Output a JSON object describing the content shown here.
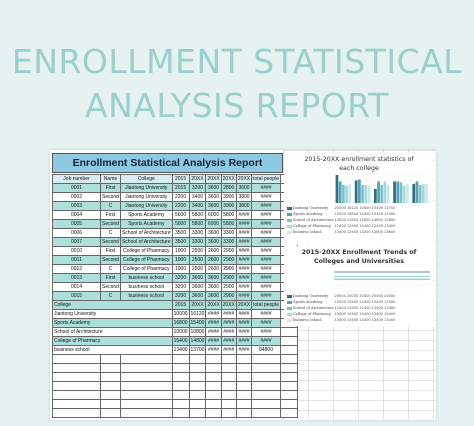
{
  "banner": {
    "line1": "ENROLLMENT STATISTICAL",
    "line2": "ANALYSIS REPORT"
  },
  "sheet": {
    "title": "Enrollment Statistical Analysis Report",
    "headers": [
      "Job number",
      "Name",
      "College",
      "2015",
      "20XX",
      "20XX",
      "20XX",
      "20XX",
      "total people"
    ],
    "rows": [
      [
        "0001",
        "First",
        "Jiaotong University",
        "2015",
        "3200",
        "3600",
        "2800",
        "3600",
        "####"
      ],
      [
        "0002",
        "Second",
        "Jiaotong University",
        "2200",
        "3400",
        "3600",
        "3900",
        "3800",
        "####"
      ],
      [
        "0003",
        "C",
        "Jiaotong University",
        "2200",
        "3400",
        "3600",
        "3900",
        "3800",
        "####"
      ],
      [
        "0004",
        "First",
        "Sports Academy",
        "5600",
        "5800",
        "6000",
        "5800",
        "####",
        "####"
      ],
      [
        "0005",
        "Second",
        "Sports Academy",
        "5600",
        "5800",
        "6000",
        "5800",
        "####",
        "####"
      ],
      [
        "0006",
        "C",
        "School of Architecture",
        "3500",
        "3300",
        "3600",
        "3300",
        "####",
        "####"
      ],
      [
        "0007",
        "Second",
        "School of Architecture",
        "3500",
        "3300",
        "3600",
        "3300",
        "####",
        "####"
      ],
      [
        "0010",
        "First",
        "College of Pharmacy",
        "1900",
        "2500",
        "2600",
        "2900",
        "####",
        "####"
      ],
      [
        "0011",
        "Second",
        "College of Pharmacy",
        "1900",
        "2500",
        "2600",
        "2900",
        "####",
        "####"
      ],
      [
        "0012",
        "C",
        "College of Pharmacy",
        "1900",
        "2500",
        "2600",
        "2900",
        "####",
        "####"
      ],
      [
        "0013",
        "First",
        "business school",
        "3200",
        "3600",
        "3600",
        "2900",
        "####",
        "####"
      ],
      [
        "0014",
        "Second",
        "business school",
        "3200",
        "3600",
        "3600",
        "2900",
        "####",
        "####"
      ],
      [
        "0015",
        "C",
        "business school",
        "3200",
        "3600",
        "3600",
        "2900",
        "####",
        "####"
      ]
    ],
    "summary_headers": [
      "College",
      "2015",
      "20XX",
      "20XX",
      "20XX",
      "20XX",
      "total people"
    ],
    "summary_rows": [
      [
        "Jiaotong University",
        "10000",
        "16120",
        "####",
        "####",
        "####",
        "####"
      ],
      [
        "Sports Academy",
        "16800",
        "15400",
        "####",
        "####",
        "####",
        "####"
      ],
      [
        "School of Architecture",
        "10000",
        "10800",
        "####",
        "####",
        "####",
        "####"
      ],
      [
        "College of Pharmacy",
        "15400",
        "14800",
        "####",
        "####",
        "####",
        "####"
      ],
      [
        "business school",
        "13400",
        "13700",
        "####",
        "####",
        "####",
        "84800"
      ]
    ]
  },
  "colors": {
    "teal": "#ade0db",
    "header_blue": "#8ec9e3",
    "banner": "#9bcfcc"
  },
  "chart1": {
    "title_line1": "2015-20XX enrollment statistics of",
    "title_line2": "each college",
    "legend": [
      "Jiaotong University",
      "Sports Academy",
      "School of Architecture",
      "College of Pharmacy",
      "business school"
    ],
    "table_rows": [
      [
        "20000",
        "16120",
        "10000",
        "15400",
        "13700"
      ],
      [
        "15400",
        "16800",
        "15400",
        "15400",
        "15400"
      ],
      [
        "13000",
        "12800",
        "12800",
        "14800",
        "12800"
      ],
      [
        "12400",
        "12900",
        "15400",
        "12400",
        "13400"
      ],
      [
        "13400",
        "12400",
        "13200",
        "13600",
        "13600"
      ]
    ]
  },
  "chart_data": [
    {
      "type": "bar",
      "title": "2015-20XX enrollment statistics of each college",
      "categories": [
        "2015",
        "20XX",
        "20XX",
        "20XX",
        "20XX"
      ],
      "series": [
        {
          "name": "Jiaotong University",
          "values": [
            20000,
            16120,
            10000,
            15400,
            13700
          ]
        },
        {
          "name": "Sports Academy",
          "values": [
            15400,
            16800,
            15400,
            15400,
            15400
          ]
        },
        {
          "name": "School of Architecture",
          "values": [
            13000,
            12800,
            12800,
            14800,
            12800
          ]
        },
        {
          "name": "College of Pharmacy",
          "values": [
            12400,
            12900,
            15400,
            12400,
            13400
          ]
        },
        {
          "name": "business school",
          "values": [
            13400,
            12400,
            13200,
            13600,
            13600
          ]
        }
      ],
      "ylim": [
        0,
        20000
      ]
    },
    {
      "type": "line",
      "title": "2015-20XX Enrollment Trends of Colleges and Universities",
      "categories": [
        "2015",
        "20XX",
        "20XX",
        "20XX",
        "20XX"
      ],
      "series": [
        {
          "name": "Jiaotong University",
          "values": [
            20000,
            20000,
            20000,
            20000,
            20000
          ]
        },
        {
          "name": "Sports Academy",
          "values": [
            15400,
            15400,
            15400,
            15400,
            15400
          ]
        },
        {
          "name": "School of Architecture",
          "values": [
            12400,
            12400,
            12400,
            12400,
            12400
          ]
        },
        {
          "name": "College of Pharmacy",
          "values": [
            15400,
            15400,
            15400,
            15400,
            15400
          ]
        },
        {
          "name": "business school",
          "values": [
            13400,
            13400,
            13400,
            13400,
            13400
          ]
        }
      ],
      "ylim": [
        0,
        20000
      ]
    }
  ],
  "chart2": {
    "title_line1": "2015-20XX Enrollment Trends of",
    "title_line2": "Colleges and Universities",
    "legend": [
      "Jiaotong University",
      "Sports Academy",
      "School of Architecture",
      "College of Pharmacy",
      "business school"
    ],
    "table_rows": [
      [
        "20000",
        "20000",
        "20000",
        "20000",
        "20000"
      ],
      [
        "15400",
        "15400",
        "15400",
        "15400",
        "15400"
      ],
      [
        "12400",
        "12400",
        "12400",
        "12400",
        "12400"
      ],
      [
        "15400",
        "15400",
        "15400",
        "15400",
        "15400"
      ],
      [
        "13400",
        "13400",
        "13400",
        "13400",
        "13400"
      ]
    ]
  }
}
